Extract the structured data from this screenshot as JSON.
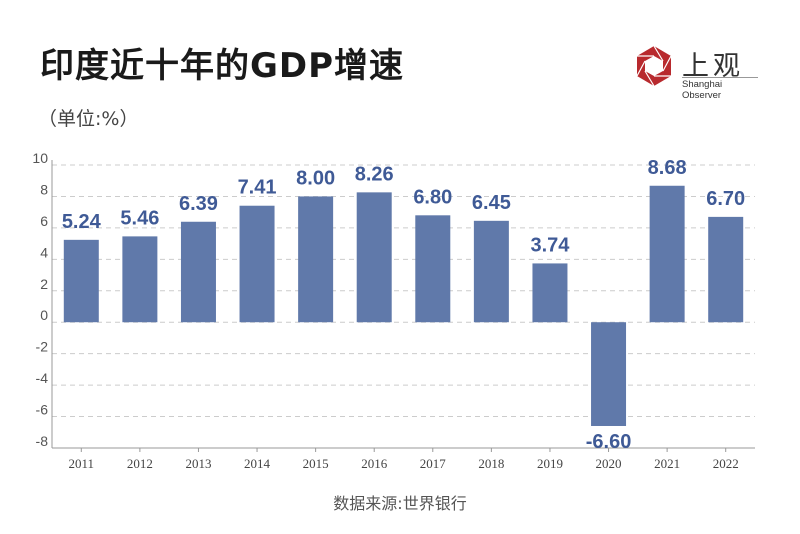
{
  "header": {
    "title": "印度近十年的GDP增速",
    "unit": "（单位:%）"
  },
  "logo": {
    "cn": "上观",
    "en": "Shanghai Observer",
    "color": "#b82a2e"
  },
  "footer": {
    "source": "数据来源:世界银行"
  },
  "chart_data": {
    "type": "bar",
    "title": "印度近十年的GDP增速",
    "ylabel": "（单位:%）",
    "categories": [
      "2011",
      "2012",
      "2013",
      "2014",
      "2015",
      "2016",
      "2017",
      "2018",
      "2019",
      "2020",
      "2021",
      "2022"
    ],
    "values": [
      5.24,
      5.46,
      6.39,
      7.41,
      8.0,
      8.26,
      6.8,
      6.45,
      3.74,
      -6.6,
      8.68,
      6.7
    ],
    "data_labels": [
      "5.24",
      "5.46",
      "6.39",
      "7.41",
      "8.00",
      "8.26",
      "6.80",
      "6.45",
      "3.74",
      "-6.60",
      "8.68",
      "6.70"
    ],
    "yticks": [
      "10",
      "8",
      "6",
      "4",
      "2",
      "0",
      "-2",
      "-4",
      "-6",
      "-8"
    ],
    "ylim": [
      -8,
      10
    ],
    "grid": true,
    "bar_color": "#6079aa",
    "label_color": "#3f5a96"
  }
}
